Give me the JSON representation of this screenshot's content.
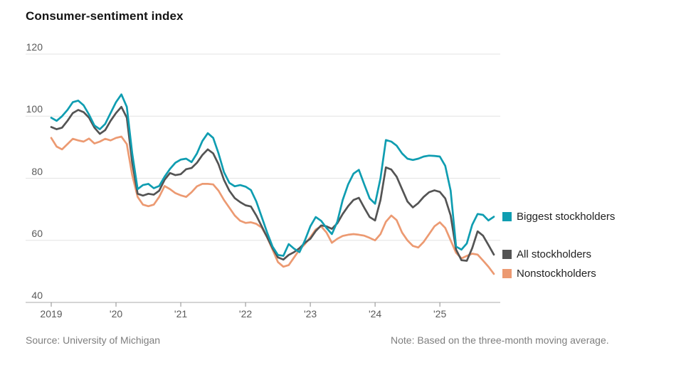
{
  "title": "Consumer-sentiment index",
  "footer": {
    "source": "Source: University of Michigan",
    "note": "Note: Based on the three-month moving average."
  },
  "colors": {
    "biggest": "#0f9db1",
    "all": "#545454",
    "non": "#ec9a72",
    "grid": "#e3e3e3",
    "axis": "#ababab",
    "tick": "#8c8c8c"
  },
  "chart_data": {
    "type": "line",
    "title": "Consumer-sentiment index",
    "xlabel": "",
    "ylabel": "",
    "ylim": [
      40,
      120
    ],
    "y_ticks": [
      40,
      60,
      80,
      100,
      120
    ],
    "x_tick_labels": [
      "2019",
      "'20",
      "'21",
      "'22",
      "'23",
      "'24",
      "'25"
    ],
    "x_interval": "monthly, Jan 2019 through Nov 2025",
    "grid": "horizontal only",
    "legend_position": "right of plot, aligned to line endpoints",
    "series": [
      {
        "name": "Biggest stockholders",
        "color": "#0f9db1",
        "values": [
          99.5,
          98.5,
          100.0,
          102.0,
          104.5,
          105.0,
          103.5,
          100.5,
          97.0,
          95.8,
          97.5,
          101.0,
          104.5,
          107.0,
          103.0,
          88.0,
          76.5,
          77.8,
          78.2,
          76.8,
          77.5,
          80.5,
          83.0,
          85.0,
          86.0,
          86.3,
          85.2,
          88.0,
          92.0,
          94.5,
          93.0,
          88.0,
          82.0,
          78.5,
          77.4,
          77.8,
          77.3,
          76.2,
          72.5,
          67.5,
          62.5,
          58.0,
          55.3,
          55.0,
          58.8,
          57.3,
          56.2,
          60.0,
          64.5,
          67.5,
          66.3,
          64.0,
          62.0,
          66.0,
          73.0,
          78.0,
          81.5,
          82.7,
          78.0,
          73.5,
          71.8,
          80.0,
          92.3,
          91.8,
          90.5,
          88.0,
          86.3,
          85.9,
          86.3,
          87.0,
          87.3,
          87.2,
          87.0,
          84.0,
          76.0,
          58.0,
          57.0,
          59.0,
          65.0,
          68.5,
          68.2,
          66.4,
          67.6
        ]
      },
      {
        "name": "All stockholders",
        "color": "#545454",
        "values": [
          96.5,
          95.8,
          96.3,
          98.5,
          101.0,
          102.0,
          101.3,
          99.5,
          96.3,
          94.3,
          95.5,
          98.5,
          101.0,
          103.0,
          99.5,
          85.0,
          75.0,
          74.4,
          75.0,
          74.7,
          76.0,
          79.5,
          81.7,
          81.0,
          81.3,
          82.9,
          83.3,
          85.0,
          87.5,
          89.3,
          88.0,
          84.5,
          79.5,
          76.0,
          73.6,
          72.3,
          71.3,
          70.9,
          68.0,
          64.5,
          61.0,
          57.5,
          54.5,
          53.8,
          55.3,
          56.2,
          57.5,
          59.2,
          60.5,
          63.0,
          64.8,
          64.5,
          63.7,
          65.5,
          68.5,
          71.0,
          73.0,
          73.7,
          70.5,
          67.5,
          66.4,
          73.0,
          83.5,
          82.8,
          80.5,
          76.5,
          72.5,
          70.6,
          72.0,
          74.0,
          75.5,
          76.1,
          75.6,
          73.5,
          68.0,
          57.0,
          53.6,
          53.4,
          57.5,
          62.9,
          61.5,
          58.5,
          55.4
        ]
      },
      {
        "name": "Nonstockholders",
        "color": "#ec9a72",
        "values": [
          93.0,
          90.2,
          89.3,
          91.0,
          92.7,
          92.2,
          91.8,
          92.8,
          91.2,
          91.8,
          92.7,
          92.2,
          93.0,
          93.4,
          91.0,
          81.0,
          74.0,
          71.5,
          71.0,
          71.5,
          74.0,
          77.5,
          76.5,
          75.2,
          74.5,
          74.0,
          75.5,
          77.4,
          78.2,
          78.2,
          78.0,
          76.0,
          73.0,
          70.5,
          68.0,
          66.3,
          65.6,
          65.8,
          65.3,
          64.1,
          61.0,
          57.0,
          53.0,
          51.5,
          52.0,
          54.5,
          57.0,
          58.8,
          61.0,
          63.5,
          64.5,
          62.5,
          59.2,
          60.5,
          61.4,
          61.8,
          62.0,
          61.8,
          61.5,
          60.8,
          60.0,
          62.0,
          66.0,
          68.0,
          66.5,
          62.5,
          60.0,
          58.2,
          57.7,
          59.5,
          62.0,
          64.5,
          65.8,
          64.0,
          60.0,
          56.0,
          54.2,
          55.0,
          55.7,
          55.4,
          53.5,
          51.5,
          49.2
        ]
      }
    ]
  }
}
